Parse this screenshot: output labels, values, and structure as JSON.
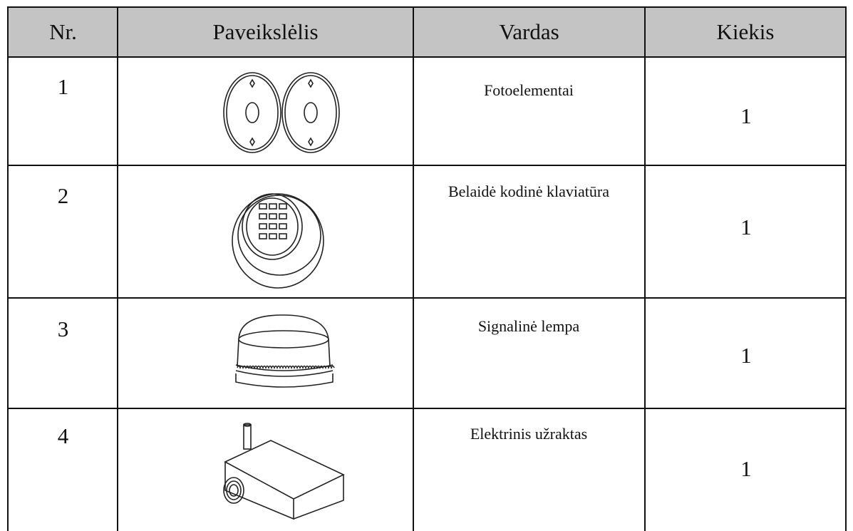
{
  "table": {
    "header": [
      "Nr.",
      "Paveikslėlis",
      "Vardas",
      "Kiekis"
    ],
    "rows": [
      [
        "1",
        "Fotoelementai",
        "1"
      ],
      [
        "2",
        "Belaidė kodinė klaviatūra",
        "1"
      ],
      [
        "3",
        "Signalinė lempa",
        "1"
      ],
      [
        "4",
        "Elektrinis užraktas",
        "1"
      ]
    ]
  }
}
